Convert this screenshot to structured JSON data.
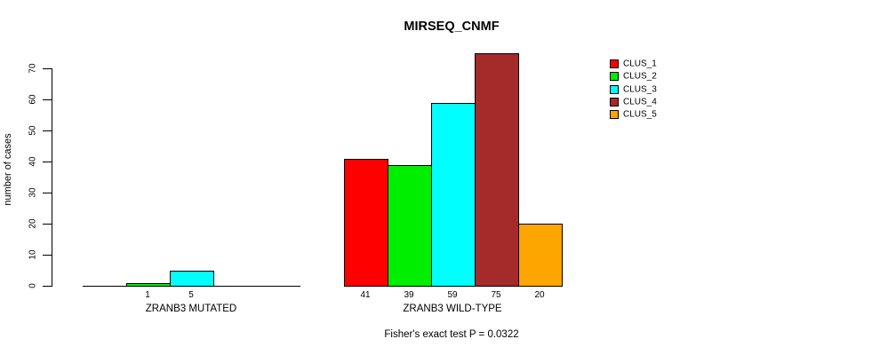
{
  "chart_data": {
    "type": "bar",
    "title": "MIRSEQ_CNMF",
    "xlabel": "",
    "ylabel": "number of cases",
    "ylim": [
      0,
      70
    ],
    "yticks": [
      0,
      10,
      20,
      30,
      40,
      50,
      60,
      70
    ],
    "grid": false,
    "legend": {
      "position": "right",
      "entries": [
        {
          "label": "CLUS_1",
          "color": "#ff0000"
        },
        {
          "label": "CLUS_2",
          "color": "#00ee00"
        },
        {
          "label": "CLUS_3",
          "color": "#00ffff"
        },
        {
          "label": "CLUS_4",
          "color": "#a52a2a"
        },
        {
          "label": "CLUS_5",
          "color": "#ffa500"
        }
      ]
    },
    "categories": [
      "CLUS_1",
      "CLUS_2",
      "CLUS_3",
      "CLUS_4",
      "CLUS_5"
    ],
    "groups": [
      {
        "label": "ZRANB3 MUTATED",
        "values": [
          0,
          1,
          5,
          0,
          0
        ],
        "bar_labels": [
          "",
          "1",
          "5",
          "",
          ""
        ]
      },
      {
        "label": "ZRANB3 WILD-TYPE",
        "values": [
          41,
          39,
          59,
          75,
          20
        ],
        "bar_labels": [
          "41",
          "39",
          "59",
          "75",
          "20"
        ]
      }
    ],
    "annotation": "Fisher's exact test P = 0.0322"
  }
}
